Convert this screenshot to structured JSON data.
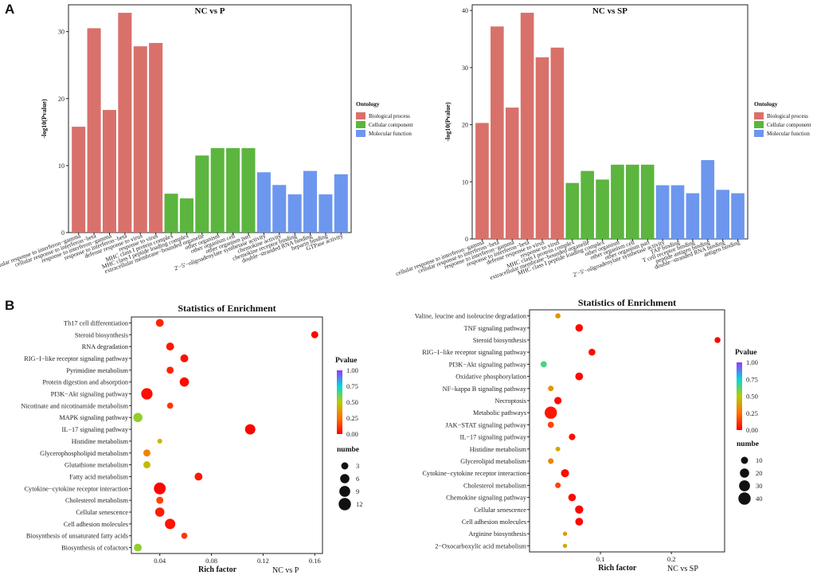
{
  "panels": {
    "a": "A",
    "b": "B"
  },
  "chart_data": [
    {
      "type": "bar",
      "title": "NC vs P",
      "ylabel": "-log10(Pvalue)",
      "ylim": [
        0,
        34
      ],
      "yticks": [
        0,
        10,
        20,
        30
      ],
      "legend_title": "Ontology",
      "legend": [
        {
          "name": "Biological process",
          "color": "#d9716b"
        },
        {
          "name": "Cellular component",
          "color": "#5cb53f"
        },
        {
          "name": "Molecular function",
          "color": "#6d97ee"
        }
      ],
      "categories": [
        "cellular response to interferon−gamma",
        "cellular response to interferon−beta",
        "response to interferon−gamma",
        "response to interferon−beta",
        "defense response to virus",
        "response to virus",
        "MHC class I protein complex",
        "MHC class I peptide loading complex",
        "extracellular membrane−bounded organelle",
        "other organism",
        "other organism cell",
        "other organism part",
        "2'−5'−oligoadenylate synthetase activity",
        "chemokine activity",
        "chemokine receptor binding",
        "double−stranded RNA binding",
        "heparin binding",
        "GTPase activity"
      ],
      "values": [
        15.8,
        30.5,
        18.3,
        32.8,
        27.8,
        28.3,
        5.8,
        5.1,
        11.5,
        12.6,
        12.6,
        12.6,
        9.0,
        7.1,
        5.7,
        9.2,
        5.7,
        8.7
      ],
      "groups": [
        0,
        0,
        0,
        0,
        0,
        0,
        1,
        1,
        1,
        1,
        1,
        1,
        2,
        2,
        2,
        2,
        2,
        2
      ]
    },
    {
      "type": "bar",
      "title": "NC vs SP",
      "ylabel": "-log10(Pvalue)",
      "ylim": [
        0,
        41
      ],
      "yticks": [
        0,
        10,
        20,
        30,
        40
      ],
      "legend_title": "Ontology",
      "legend": [
        {
          "name": "Biological process",
          "color": "#d9716b"
        },
        {
          "name": "Cellular component",
          "color": "#5cb53f"
        },
        {
          "name": "Molecular function",
          "color": "#6d97ee"
        }
      ],
      "categories": [
        "cellular response to interferon−gamma",
        "cellular response to interferon−beta",
        "response to interferon−gamma",
        "response to interferon−beta",
        "defense response to virus",
        "response to virus",
        "MHC class I protein complex",
        "extracellular membrane−bounded organelle",
        "MHC class I peptide loading complex",
        "other organism",
        "other organism cell",
        "other organism part",
        "2'−5'−oligoadenylate synthetase activity",
        "TAP binding",
        "T cell receptor binding",
        "peptide antigen binding",
        "double−stranded RNA binding",
        "antigen binding"
      ],
      "values": [
        20.3,
        37.2,
        23.0,
        39.6,
        31.8,
        33.5,
        9.8,
        11.9,
        10.4,
        13.0,
        13.0,
        13.0,
        9.4,
        9.4,
        8.0,
        13.8,
        8.6,
        8.0
      ],
      "groups": [
        0,
        0,
        0,
        0,
        0,
        0,
        1,
        1,
        1,
        1,
        1,
        1,
        2,
        2,
        2,
        2,
        2,
        2
      ]
    },
    {
      "type": "scatter",
      "title": "Statistics of Enrichment",
      "xlabel": "Rich factor",
      "comparison": "NC vs P",
      "xlim": [
        0.018,
        0.166
      ],
      "xticks": [
        "0.04",
        "0.08",
        "0.12",
        "0.16"
      ],
      "xtick_values": [
        0.04,
        0.08,
        0.12,
        0.16
      ],
      "colorbar_title": "Pvalue",
      "colorbar_ticks": [
        "1.00",
        "0.75",
        "0.50",
        "0.25",
        "0.00"
      ],
      "size_title": "numbe",
      "size_ticks": [
        "3",
        "6",
        "9",
        "12"
      ],
      "size_values": [
        3,
        6,
        9,
        12
      ],
      "size_max": 12,
      "terms": [
        {
          "name": "Th17 cell differentiation",
          "rich": 0.04,
          "count": 4,
          "p": 0.08
        },
        {
          "name": "Steroid biosynthesis",
          "rich": 0.16,
          "count": 3,
          "p": 0.01
        },
        {
          "name": "RNA degradation",
          "rich": 0.048,
          "count": 4,
          "p": 0.05
        },
        {
          "name": "RIG−I−like receptor signaling pathway",
          "rich": 0.059,
          "count": 4,
          "p": 0.03
        },
        {
          "name": "Pyrimidine metabolism",
          "rich": 0.048,
          "count": 3,
          "p": 0.08
        },
        {
          "name": "Protein digestion and absorption",
          "rich": 0.059,
          "count": 6,
          "p": 0.02
        },
        {
          "name": "PI3K−Akt signaling pathway",
          "rich": 0.03,
          "count": 10,
          "p": 0.03
        },
        {
          "name": "Nicotinate and nicotinamide metabolism",
          "rich": 0.048,
          "count": 2,
          "p": 0.12
        },
        {
          "name": "MAPK signaling pathway",
          "rich": 0.023,
          "count": 6,
          "p": 0.55
        },
        {
          "name": "IL−17 signaling pathway",
          "rich": 0.11,
          "count": 8,
          "p": 0.005
        },
        {
          "name": "Histidine metabolism",
          "rich": 0.04,
          "count": 1,
          "p": 0.45
        },
        {
          "name": "Glycerophospholipid metabolism",
          "rich": 0.03,
          "count": 3,
          "p": 0.3
        },
        {
          "name": "Glutathione metabolism",
          "rich": 0.03,
          "count": 3,
          "p": 0.45
        },
        {
          "name": "Fatty acid metabolism",
          "rich": 0.07,
          "count": 4,
          "p": 0.05
        },
        {
          "name": "Cytokine−cytokine receptor interaction",
          "rich": 0.04,
          "count": 11,
          "p": 0.01
        },
        {
          "name": "Cholesterol metabolism",
          "rich": 0.04,
          "count": 3,
          "p": 0.15
        },
        {
          "name": "Cellular senescence",
          "rich": 0.04,
          "count": 6,
          "p": 0.06
        },
        {
          "name": "Cell adhesion molecules",
          "rich": 0.048,
          "count": 8,
          "p": 0.04
        },
        {
          "name": "Biosynthesis of unsaturated fatty acids",
          "rich": 0.059,
          "count": 2,
          "p": 0.12
        },
        {
          "name": "Biosynthesis of cofactors",
          "rich": 0.023,
          "count": 4,
          "p": 0.55
        }
      ]
    },
    {
      "type": "scatter",
      "title": "Statistics of Enrichment",
      "xlabel": "Rich factor",
      "comparison": "NC vs SP",
      "xlim": [
        0.0,
        0.275
      ],
      "xticks": [
        "0.1",
        "0.2"
      ],
      "xtick_values": [
        0.1,
        0.2
      ],
      "colorbar_title": "Pvalue",
      "colorbar_ticks": [
        "1.00",
        "0.75",
        "0.50",
        "0.25",
        "0.00"
      ],
      "size_title": "numbe",
      "size_ticks": [
        "10",
        "20",
        "30",
        "40"
      ],
      "size_values": [
        10,
        20,
        30,
        40
      ],
      "size_max": 40,
      "terms": [
        {
          "name": "Valine, leucine and isoleucine degradation",
          "rich": 0.04,
          "count": 4,
          "p": 0.35
        },
        {
          "name": "TNF signaling pathway",
          "rich": 0.07,
          "count": 12,
          "p": 0.02
        },
        {
          "name": "Steroid biosynthesis",
          "rich": 0.265,
          "count": 6,
          "p": 0.01
        },
        {
          "name": "RIG−I−like receptor signaling pathway",
          "rich": 0.088,
          "count": 9,
          "p": 0.02
        },
        {
          "name": "PI3K−Akt signaling pathway",
          "rich": 0.02,
          "count": 7,
          "p": 0.65
        },
        {
          "name": "Oxidative phosphorylation",
          "rich": 0.07,
          "count": 13,
          "p": 0.02
        },
        {
          "name": "NF−kappa B signaling pathway",
          "rich": 0.03,
          "count": 5,
          "p": 0.35
        },
        {
          "name": "Necroptosis",
          "rich": 0.04,
          "count": 11,
          "p": 0.02
        },
        {
          "name": "Metabolic pathways",
          "rich": 0.03,
          "count": 40,
          "p": 0.05
        },
        {
          "name": "JAK−STAT signaling pathway",
          "rich": 0.03,
          "count": 7,
          "p": 0.15
        },
        {
          "name": "IL−17 signaling pathway",
          "rich": 0.06,
          "count": 8,
          "p": 0.03
        },
        {
          "name": "Histidine metabolism",
          "rich": 0.04,
          "count": 3,
          "p": 0.4
        },
        {
          "name": "Glycerolipid metabolism",
          "rich": 0.03,
          "count": 5,
          "p": 0.3
        },
        {
          "name": "Cytokine−cytokine receptor interaction",
          "rich": 0.05,
          "count": 14,
          "p": 0.02
        },
        {
          "name": "Cholesterol metabolism",
          "rich": 0.04,
          "count": 5,
          "p": 0.15
        },
        {
          "name": "Chemokine signaling pathway",
          "rich": 0.06,
          "count": 12,
          "p": 0.02
        },
        {
          "name": "Cellular senescence",
          "rich": 0.07,
          "count": 15,
          "p": 0.01
        },
        {
          "name": "Cell adhesion molecules",
          "rich": 0.07,
          "count": 13,
          "p": 0.02
        },
        {
          "name": "Arginine biosynthesis",
          "rich": 0.05,
          "count": 2,
          "p": 0.35
        },
        {
          "name": "2−Oxocarboxylic acid metabolism",
          "rich": 0.05,
          "count": 2,
          "p": 0.4
        }
      ]
    }
  ]
}
